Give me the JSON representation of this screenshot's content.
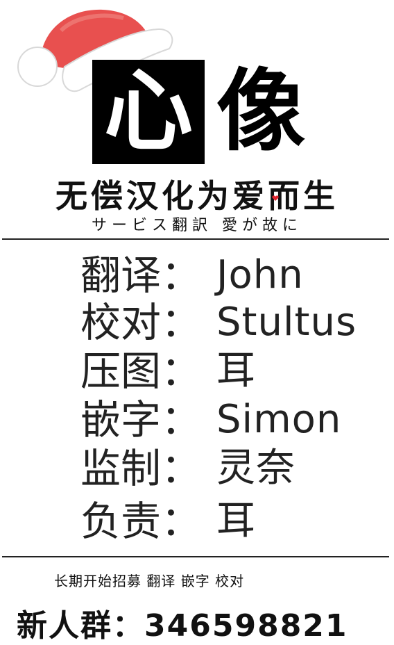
{
  "logo": {
    "left_char": "心",
    "right_char": "像"
  },
  "slogan": "无偿汉化为爱而生",
  "subslogan": "サービス翻訳 愛が故に",
  "credits": [
    {
      "role": "翻译：",
      "name": "John"
    },
    {
      "role": "校对：",
      "name": "Stultus"
    },
    {
      "role": "压图：",
      "name": "耳"
    },
    {
      "role": "嵌字：",
      "name": "Simon"
    },
    {
      "role": "监制：",
      "name": "灵奈"
    },
    {
      "role": "负责：",
      "name": "耳"
    }
  ],
  "recruit_text": "长期开始招募 翻译 嵌字 校对",
  "group_text": "新人群：346598821",
  "colors": {
    "hat_red": "#e8504f",
    "hat_white": "#ffffff",
    "heart": "#e0242e"
  }
}
